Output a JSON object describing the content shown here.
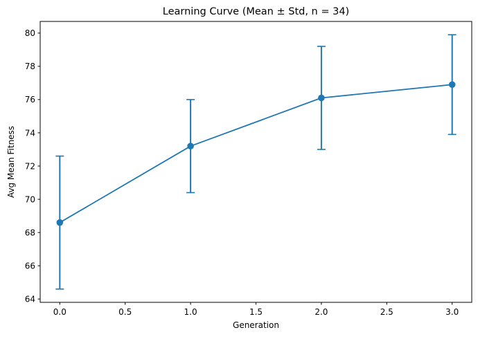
{
  "chart_data": {
    "type": "line",
    "title": "Learning Curve (Mean ± Std, n = 34)",
    "xlabel": "Generation",
    "ylabel": "Avg Mean Fitness",
    "x": [
      0,
      1,
      2,
      3
    ],
    "series": [
      {
        "name": "Avg Mean Fitness",
        "values": [
          68.6,
          73.2,
          76.1,
          76.9
        ],
        "std": [
          4.0,
          2.8,
          3.1,
          3.0
        ],
        "color": "#1f77b4",
        "marker": "circle",
        "error_bars": true
      }
    ],
    "xlim": [
      -0.15,
      3.15
    ],
    "ylim": [
      63.8,
      80.7
    ],
    "xticks": [
      0.0,
      0.5,
      1.0,
      1.5,
      2.0,
      2.5,
      3.0
    ],
    "xtick_labels": [
      "0.0",
      "0.5",
      "1.0",
      "1.5",
      "2.0",
      "2.5",
      "3.0"
    ],
    "yticks": [
      64,
      66,
      68,
      70,
      72,
      74,
      76,
      78,
      80
    ],
    "ytick_labels": [
      "64",
      "66",
      "68",
      "70",
      "72",
      "74",
      "76",
      "78",
      "80"
    ],
    "grid": false,
    "legend": null
  }
}
